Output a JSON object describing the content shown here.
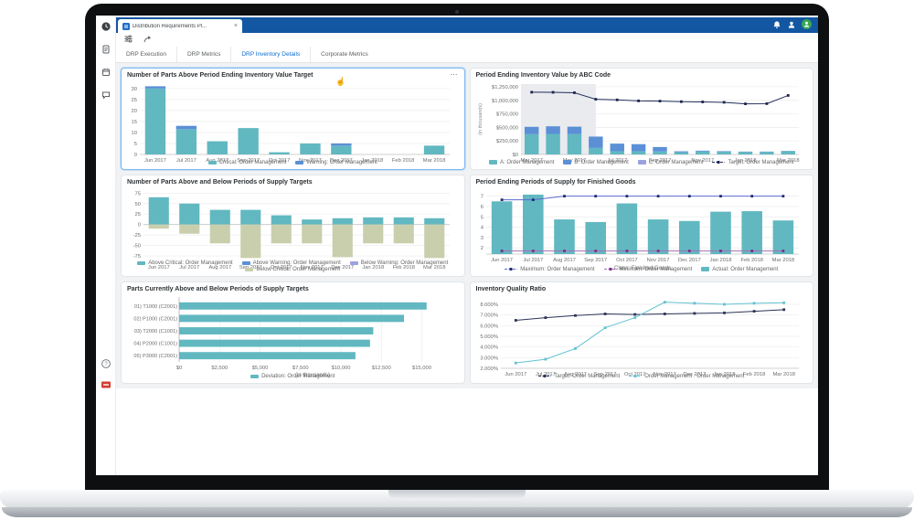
{
  "browser_tab": {
    "title": "Distribution Requirements Pl...",
    "favicon": "grid-icon"
  },
  "ui": {
    "close_label": "×",
    "overflow_label": "⋯",
    "cursor_glyph": "☝"
  },
  "header_icons": [
    "bell-icon",
    "users-icon",
    "avatar"
  ],
  "toolbar_icons": [
    "filter-sliders-icon",
    "share-arrow-icon"
  ],
  "rail_icons": [
    "history-icon",
    "document-icon",
    "calendar-icon",
    "feedback-icon"
  ],
  "rail_bottom_icons": [
    "help-icon",
    "logo-icon"
  ],
  "help_glyph": "?",
  "nav_tabs": [
    {
      "label": "DRP Execution",
      "active": false
    },
    {
      "label": "DRP Metrics",
      "active": false
    },
    {
      "label": "DRP Inventory Details",
      "active": true
    },
    {
      "label": "Corporate Metrics",
      "active": false
    }
  ],
  "colors": {
    "header_blue": "#1356a2",
    "active_tab_blue": "#0a6ed1",
    "teal": "#61b8c1",
    "blue": "#5b8fd6",
    "purple": "#9ba2e0",
    "olive": "#c9cfad",
    "navy_line": "#222d5a",
    "max_blue": "#5b6ad0",
    "min_purple": "#a76fb5",
    "cyan_line": "#62c2d2",
    "avatar_green": "#35a853",
    "logo_red": "#d23f31"
  },
  "chart_data": [
    {
      "type": "bar",
      "title": "Number of Parts Above Period Ending Inventory Value Target",
      "categories": [
        "Jun 2017",
        "Jul 2017",
        "Aug 2017",
        "Sep 2017",
        "Oct 2017",
        "Nov 2017",
        "Dec 2017",
        "Jan 2018",
        "Feb 2018",
        "Mar 2018"
      ],
      "y_min": 0,
      "y_max": 32,
      "y_ticks": [
        0,
        5,
        10,
        15,
        20,
        25,
        30
      ],
      "y_tick_labels": [
        "0",
        "5",
        "10",
        "15",
        "20",
        "25",
        "30"
      ],
      "bar_series": [
        {
          "name": "Critical: Order Management",
          "color": "#61b8c1",
          "values": [
            30,
            11.5,
            6,
            12,
            1,
            5,
            4,
            0,
            0,
            4
          ]
        },
        {
          "name": "Warning: Order Management",
          "color": "#5b8fd6",
          "values": [
            1,
            1.5,
            0,
            0,
            0,
            0,
            1,
            0,
            0,
            0
          ]
        }
      ],
      "legend": [
        {
          "label": "Critical: Order Management",
          "type": "bar",
          "color": "#61b8c1"
        },
        {
          "label": "Warning: Order Management",
          "type": "bar",
          "color": "#5b8fd6"
        }
      ]
    },
    {
      "type": "bar-line",
      "title": "Period Ending Inventory Value by ABC Code",
      "categories": [
        "Mar 2017",
        "Apr 2017",
        "May 2017",
        "Jun 2017",
        "Jul 2017",
        "Aug 2017",
        "Sep 2017",
        "Oct 2017",
        "Nov 2017",
        "Dec 2017",
        "Jan 2018",
        "Feb 2018",
        "Mar 2018"
      ],
      "x_label_every": 2,
      "ylabel": "(in thousands)",
      "y_min": 0,
      "y_max": 1300,
      "y_ticks": [
        0,
        250,
        500,
        750,
        1000,
        1250
      ],
      "y_tick_labels": [
        "$0",
        "$250,000",
        "$500,000",
        "$750,000",
        "$1,000,000",
        "$1,250,000"
      ],
      "shade_span": [
        -0.5,
        3.0
      ],
      "bar_series": [
        {
          "name": "A: Order Management",
          "color": "#61b8c1",
          "values": [
            375,
            380,
            375,
            120,
            60,
            60,
            55,
            38,
            55,
            50,
            45,
            45,
            60
          ]
        },
        {
          "name": "B: Order Management",
          "color": "#5b8fd6",
          "values": [
            135,
            140,
            138,
            210,
            140,
            130,
            82,
            20,
            15,
            10,
            8,
            8,
            5
          ]
        },
        {
          "name": "C: Order Management",
          "color": "#9ba2e0",
          "values": [
            0,
            0,
            0,
            0,
            0,
            0,
            0,
            0,
            0,
            0,
            0,
            0,
            0
          ]
        }
      ],
      "line_series": [
        {
          "name": "Target: Order Management",
          "color": "#222d5a",
          "marker": "#1a2550",
          "values": [
            1150,
            1148,
            1140,
            1020,
            1008,
            990,
            985,
            975,
            970,
            963,
            935,
            938,
            1090
          ]
        }
      ],
      "legend": [
        {
          "label": "A: Order Management",
          "type": "bar",
          "color": "#61b8c1"
        },
        {
          "label": "B: Order Management",
          "type": "bar",
          "color": "#5b8fd6"
        },
        {
          "label": "C: Order Management",
          "type": "bar",
          "color": "#9ba2e0"
        },
        {
          "label": "Target: Order Management",
          "type": "line",
          "color": "#222d5a",
          "marker": "#1a2550"
        }
      ]
    },
    {
      "type": "bar",
      "title": "Number of Parts Above and Below Periods of Supply Targets",
      "categories": [
        "Jun 2017",
        "Jul 2017",
        "Aug 2017",
        "Sep 2017",
        "Oct 2017",
        "Nov 2017",
        "Dec 2017",
        "Jan 2018",
        "Feb 2018",
        "Mar 2018"
      ],
      "y_min": -88,
      "y_max": 80,
      "y_ticks": [
        75,
        50,
        25,
        0,
        -25,
        -50,
        -75
      ],
      "y_tick_labels": [
        "75",
        "50",
        "25",
        "0",
        "-25",
        "-50",
        "-75"
      ],
      "bar_series": [
        {
          "name": "Above Critical: Order Management",
          "color": "#61b8c1",
          "values": [
            65,
            50,
            35,
            35,
            22,
            12,
            15,
            17,
            17,
            15
          ]
        },
        {
          "name": "Above Warning: Order Management",
          "color": "#5b8fd6",
          "values": [
            0,
            0,
            0,
            0,
            0,
            0,
            0,
            0,
            0,
            0
          ]
        },
        {
          "name": "Below Warning: Order Management",
          "color": "#9ba2e0",
          "values": [
            0,
            0,
            0,
            0,
            0,
            0,
            0,
            0,
            0,
            0
          ]
        },
        {
          "name": "Below Critical: Order Management",
          "color": "#c9cfad",
          "values": [
            -10,
            -22,
            -45,
            -80,
            -45,
            -45,
            -78,
            -45,
            -45,
            -80
          ]
        }
      ],
      "legend": [
        {
          "label": "Above Critical: Order Management",
          "type": "bar",
          "color": "#61b8c1"
        },
        {
          "label": "Above Warning: Order Management",
          "type": "bar",
          "color": "#5b8fd6"
        },
        {
          "label": "Below Warning: Order Management",
          "type": "bar",
          "color": "#9ba2e0"
        },
        {
          "label": "Below Critical: Order Management",
          "type": "bar",
          "color": "#c9cfad"
        }
      ]
    },
    {
      "type": "bar-line",
      "title": "Period Ending Periods of Supply for Finished Goods",
      "categories": [
        "Jun 2017",
        "Jul 2017",
        "Aug 2017",
        "Sep 2017",
        "Oct 2017",
        "Nov 2017",
        "Dec 2017",
        "Jan 2018",
        "Feb 2018",
        "Mar 2018"
      ],
      "xlabel": "Class: Finished Goods",
      "bars_from_axis": true,
      "y_min": 1.4,
      "y_max": 7.5,
      "y_ticks": [
        2,
        3,
        4,
        5,
        6,
        7
      ],
      "y_tick_labels": [
        "2",
        "3",
        "4",
        "5",
        "6",
        "7"
      ],
      "bar_series": [
        {
          "name": "Actual: Order Management",
          "color": "#61b8c1",
          "values": [
            6.5,
            7.15,
            4.75,
            4.5,
            6.3,
            4.75,
            4.6,
            5.5,
            5.55,
            4.65
          ]
        }
      ],
      "line_series": [
        {
          "name": "Maximum: Order Management",
          "color": "#5b6ad0",
          "marker": "#1c2d6e",
          "values": [
            6.65,
            6.65,
            7,
            7,
            7,
            7,
            7,
            7,
            7,
            7
          ]
        },
        {
          "name": "Minimum: Order Management",
          "color": "#a76fb5",
          "marker": "#7a2f86",
          "values": [
            1.7,
            1.7,
            1.7,
            1.7,
            1.7,
            1.7,
            1.7,
            1.7,
            1.7,
            1.7
          ]
        }
      ],
      "legend": [
        {
          "label": "Maximum: Order Management",
          "type": "line",
          "color": "#5b6ad0",
          "marker": "#1c2d6e"
        },
        {
          "label": "Minimum: Order Management",
          "type": "line",
          "color": "#a76fb5",
          "marker": "#7a2f86"
        },
        {
          "label": "Actual: Order Management",
          "type": "bar",
          "color": "#61b8c1"
        }
      ]
    },
    {
      "type": "hbar",
      "title": "Parts Currently Above and Below Periods of Supply Targets",
      "categories": [
        "01) T1000 (C2001)",
        "02) P1000 (C2001)",
        "03) T2000 (C1001)",
        "04) P2000 (C1001)",
        "05) P3000 (C2001)"
      ],
      "values": [
        15300,
        13900,
        12000,
        11800,
        10900
      ],
      "bar_color": "#61b8c1",
      "x_min": 0,
      "x_max": 16500,
      "x_ticks": [
        0,
        2500,
        5000,
        7500,
        10000,
        12500,
        15000
      ],
      "x_tick_labels": [
        "$0",
        "$2,500",
        "$5,000",
        "$7,500",
        "$10,000",
        "$12,500",
        "$15,000"
      ],
      "xlabel": "(in thousands)",
      "legend": [
        {
          "label": "Deviation: Order Management",
          "type": "bar",
          "color": "#61b8c1"
        }
      ]
    },
    {
      "type": "line",
      "title": "Inventory Quality Ratio",
      "categories": [
        "Jun 2017",
        "Jul 2017",
        "Aug 2017",
        "Sep 2017",
        "Oct 2017",
        "Nov 2017",
        "Dec 2017",
        "Jan 2018",
        "Feb 2018",
        "Mar 2018"
      ],
      "y_min": 2,
      "y_max": 8.6,
      "y_ticks": [
        2,
        3,
        4,
        5,
        6,
        7,
        8
      ],
      "y_tick_labels": [
        "2.000%",
        "3.000%",
        "4.000%",
        "5.000%",
        "6.000%",
        "7.000%",
        "8.000%"
      ],
      "line_series": [
        {
          "name": "Target: Order Management",
          "color": "#2b3356",
          "marker": "#2b3356",
          "values": [
            6.5,
            6.75,
            6.95,
            7.1,
            7.05,
            7.1,
            7.15,
            7.2,
            7.35,
            7.5
          ]
        },
        {
          "name": "Order Management : Order Management",
          "color": "#62c2d2",
          "marker": "#62c2d2",
          "values": [
            2.5,
            2.85,
            3.85,
            5.8,
            6.75,
            8.2,
            8.1,
            8.0,
            8.1,
            8.15
          ]
        }
      ],
      "legend": [
        {
          "label": "Target: Order Management",
          "type": "line",
          "color": "#2b3356",
          "marker": "#2b3356"
        },
        {
          "label": "Order Management : Order Management",
          "type": "line",
          "color": "#62c2d2",
          "marker": "#62c2d2"
        }
      ]
    }
  ]
}
